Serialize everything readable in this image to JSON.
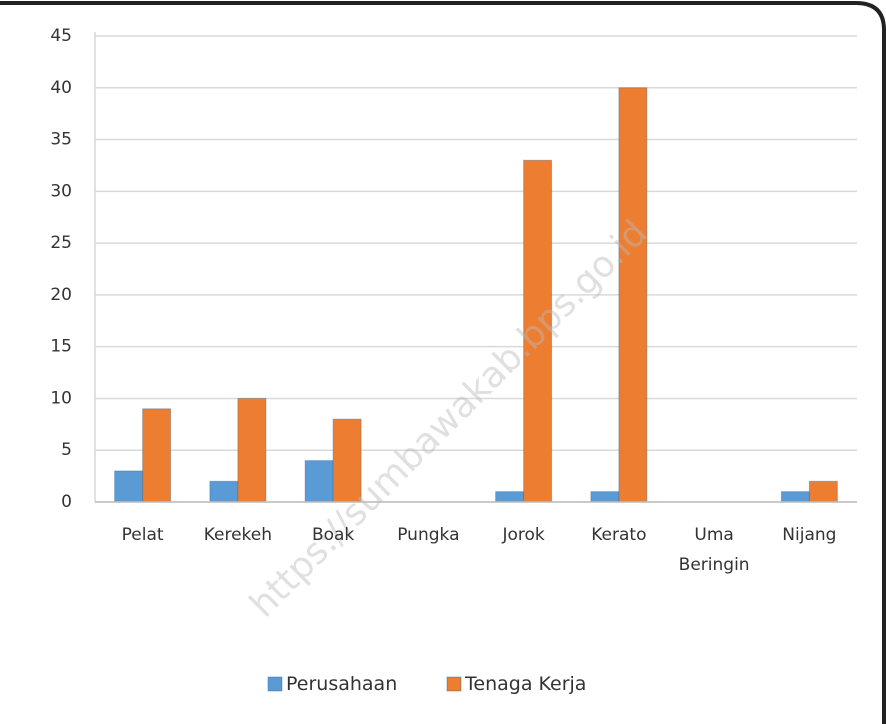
{
  "chart_data": {
    "type": "bar",
    "categories": [
      "Pelat",
      "Kerekeh",
      "Boak",
      "Pungka",
      "Jorok",
      "Kerato",
      "Uma Beringin",
      "Nijang"
    ],
    "series": [
      {
        "name": "Perusahaan",
        "color": "#5b9bd5",
        "values": [
          3,
          2,
          4,
          0,
          1,
          1,
          0,
          1
        ]
      },
      {
        "name": "Tenaga Kerja",
        "color": "#ed7d31",
        "values": [
          9,
          10,
          8,
          0,
          33,
          40,
          0,
          2
        ]
      }
    ],
    "ylim": [
      0,
      45
    ],
    "yticks": [
      0,
      5,
      10,
      15,
      20,
      25,
      30,
      35,
      40,
      45
    ],
    "grid": true,
    "legend": "bottom",
    "watermark": "https://sumbawakab.bps.go.id"
  }
}
